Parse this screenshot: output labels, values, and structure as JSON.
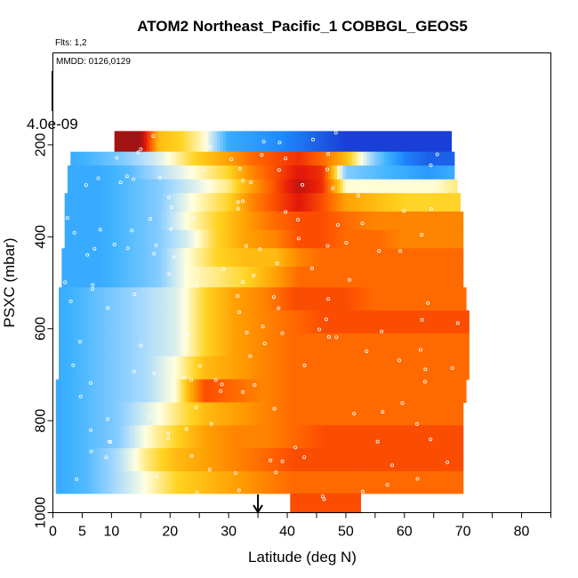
{
  "chart_data": {
    "type": "heatmap",
    "title": "ATOM2 Northeast_Pacific_1 COBBGL_GEOS5",
    "subtitle_flights": "Flts: 1,2",
    "subtitle_dates": "MMDD: 0126,0129",
    "xlabel": "Latitude (deg N)",
    "ylabel": "PSXC (mbar)",
    "xlim": [
      0,
      85
    ],
    "ylim": [
      1000,
      0
    ],
    "x_ticks": [
      "0",
      "5",
      "10",
      "20",
      "30",
      "40",
      "50",
      "60",
      "70",
      "80"
    ],
    "y_ticks": [
      "200",
      "400",
      "600",
      "800",
      "1000"
    ],
    "scale_label": "4.0e-09",
    "marker_latitude": 35,
    "colormap": [
      "#1a3fd6",
      "#1f8bff",
      "#3fb3ff",
      "#9fd6ff",
      "#ffffe0",
      "#ffd21f",
      "#ff9800",
      "#ff5a00",
      "#e61a0a",
      "#a01414"
    ],
    "fill_value_range": [
      0,
      1
    ],
    "layers": [
      {
        "p_top": 170,
        "p_bottom": 215,
        "lat_start": 10.5,
        "lat_end": 68,
        "lat": [
          11,
          15,
          18,
          22,
          26,
          30,
          35,
          40,
          45,
          50,
          55,
          60,
          64,
          68
        ],
        "value": [
          1.0,
          1.0,
          0.6,
          0.55,
          0.45,
          0.2,
          0.15,
          0.1,
          0.05,
          0.0,
          0.0,
          0.0,
          0.0,
          0.0
        ]
      },
      {
        "p_top": 215,
        "p_bottom": 245,
        "lat_start": 3,
        "lat_end": 68.5,
        "lat": [
          3,
          8,
          12,
          18,
          24,
          30,
          34,
          38,
          42,
          46,
          50,
          55,
          60,
          64,
          68
        ],
        "value": [
          0.2,
          0.25,
          0.3,
          0.4,
          0.55,
          0.65,
          0.75,
          0.8,
          0.85,
          0.75,
          0.6,
          0.3,
          0.1,
          0.05,
          0.05
        ]
      },
      {
        "p_top": 245,
        "p_bottom": 275,
        "lat_start": 2.5,
        "lat_end": 68.5,
        "lat": [
          3,
          8,
          13,
          18,
          24,
          30,
          34,
          38,
          42,
          46,
          50,
          55,
          60,
          64,
          68
        ],
        "value": [
          0.2,
          0.2,
          0.25,
          0.35,
          0.45,
          0.55,
          0.7,
          0.8,
          0.9,
          0.85,
          0.3,
          0.25,
          0.2,
          0.15,
          0.2
        ]
      },
      {
        "p_top": 275,
        "p_bottom": 305,
        "lat_start": 2.5,
        "lat_end": 69,
        "lat": [
          3,
          8,
          13,
          18,
          24,
          30,
          34,
          38,
          42,
          46,
          50,
          55,
          60,
          65,
          69
        ],
        "value": [
          0.2,
          0.2,
          0.25,
          0.3,
          0.4,
          0.5,
          0.65,
          0.8,
          0.95,
          0.85,
          0.45,
          0.45,
          0.45,
          0.45,
          0.5
        ]
      },
      {
        "p_top": 305,
        "p_bottom": 345,
        "lat_start": 2,
        "lat_end": 69.5,
        "lat": [
          2,
          8,
          13,
          18,
          24,
          30,
          34,
          38,
          42,
          46,
          50,
          55,
          60,
          65,
          69
        ],
        "value": [
          0.2,
          0.2,
          0.25,
          0.3,
          0.45,
          0.55,
          0.7,
          0.8,
          0.9,
          0.8,
          0.65,
          0.6,
          0.55,
          0.55,
          0.55
        ]
      },
      {
        "p_top": 345,
        "p_bottom": 385,
        "lat_start": 2,
        "lat_end": 70,
        "lat": [
          2,
          8,
          13,
          18,
          23,
          28,
          33,
          38,
          42,
          46,
          50,
          55,
          60,
          65,
          70
        ],
        "value": [
          0.2,
          0.2,
          0.25,
          0.3,
          0.45,
          0.55,
          0.65,
          0.75,
          0.8,
          0.8,
          0.75,
          0.7,
          0.7,
          0.7,
          0.7
        ]
      },
      {
        "p_top": 385,
        "p_bottom": 425,
        "lat_start": 2,
        "lat_end": 70,
        "lat": [
          2,
          8,
          13,
          18,
          23,
          28,
          33,
          38,
          42,
          46,
          50,
          55,
          60,
          65,
          70
        ],
        "value": [
          0.2,
          0.2,
          0.25,
          0.3,
          0.4,
          0.55,
          0.65,
          0.7,
          0.8,
          0.8,
          0.75,
          0.75,
          0.7,
          0.7,
          0.7
        ]
      },
      {
        "p_top": 425,
        "p_bottom": 465,
        "lat_start": 1.5,
        "lat_end": 70,
        "lat": [
          2,
          8,
          13,
          18,
          23,
          28,
          33,
          38,
          42,
          46,
          50,
          55,
          60,
          65,
          70
        ],
        "value": [
          0.2,
          0.2,
          0.25,
          0.3,
          0.45,
          0.55,
          0.6,
          0.6,
          0.7,
          0.75,
          0.75,
          0.75,
          0.75,
          0.75,
          0.75
        ]
      },
      {
        "p_top": 465,
        "p_bottom": 510,
        "lat_start": 1.5,
        "lat_end": 70,
        "lat": [
          2,
          8,
          13,
          18,
          23,
          28,
          33,
          38,
          42,
          46,
          50,
          55,
          60,
          65,
          70
        ],
        "value": [
          0.2,
          0.2,
          0.25,
          0.3,
          0.45,
          0.5,
          0.55,
          0.65,
          0.75,
          0.75,
          0.75,
          0.75,
          0.75,
          0.75,
          0.75
        ]
      },
      {
        "p_top": 510,
        "p_bottom": 560,
        "lat_start": 1,
        "lat_end": 70.5,
        "lat": [
          1,
          6,
          11,
          16,
          21,
          26,
          31,
          36,
          41,
          46,
          50,
          55,
          60,
          65,
          70
        ],
        "value": [
          0.2,
          0.25,
          0.3,
          0.35,
          0.4,
          0.55,
          0.65,
          0.7,
          0.8,
          0.8,
          0.8,
          0.75,
          0.75,
          0.75,
          0.75
        ]
      },
      {
        "p_top": 560,
        "p_bottom": 610,
        "lat_start": 1,
        "lat_end": 71,
        "lat": [
          1,
          6,
          11,
          16,
          21,
          26,
          31,
          36,
          41,
          46,
          50,
          55,
          60,
          65,
          71
        ],
        "value": [
          0.2,
          0.25,
          0.3,
          0.35,
          0.4,
          0.55,
          0.65,
          0.7,
          0.75,
          0.8,
          0.8,
          0.8,
          0.8,
          0.8,
          0.8
        ]
      },
      {
        "p_top": 610,
        "p_bottom": 660,
        "lat_start": 1,
        "lat_end": 71,
        "lat": [
          1,
          6,
          11,
          16,
          21,
          26,
          31,
          36,
          41,
          46,
          50,
          55,
          60,
          65,
          71
        ],
        "value": [
          0.2,
          0.25,
          0.3,
          0.35,
          0.4,
          0.55,
          0.65,
          0.7,
          0.75,
          0.75,
          0.75,
          0.75,
          0.75,
          0.75,
          0.75
        ]
      },
      {
        "p_top": 660,
        "p_bottom": 710,
        "lat_start": 1,
        "lat_end": 71,
        "lat": [
          1,
          6,
          11,
          16,
          21,
          26,
          31,
          36,
          41,
          46,
          50,
          55,
          60,
          65,
          71
        ],
        "value": [
          0.2,
          0.25,
          0.3,
          0.35,
          0.45,
          0.6,
          0.65,
          0.7,
          0.75,
          0.75,
          0.75,
          0.75,
          0.75,
          0.75,
          0.75
        ]
      },
      {
        "p_top": 710,
        "p_bottom": 760,
        "lat_start": 0.5,
        "lat_end": 70.5,
        "lat": [
          1,
          6,
          11,
          16,
          21,
          26,
          31,
          36,
          41,
          46,
          50,
          55,
          60,
          65,
          70
        ],
        "value": [
          0.2,
          0.25,
          0.3,
          0.35,
          0.45,
          0.8,
          0.75,
          0.7,
          0.75,
          0.75,
          0.75,
          0.75,
          0.75,
          0.75,
          0.75
        ]
      },
      {
        "p_top": 760,
        "p_bottom": 810,
        "lat_start": 0.5,
        "lat_end": 70,
        "lat": [
          1,
          6,
          11,
          16,
          21,
          26,
          31,
          36,
          41,
          46,
          50,
          55,
          60,
          65,
          70
        ],
        "value": [
          0.2,
          0.25,
          0.3,
          0.4,
          0.5,
          0.6,
          0.65,
          0.7,
          0.75,
          0.75,
          0.75,
          0.75,
          0.75,
          0.75,
          0.75
        ]
      },
      {
        "p_top": 810,
        "p_bottom": 860,
        "lat_start": 0.5,
        "lat_end": 70,
        "lat": [
          1,
          6,
          11,
          16,
          21,
          26,
          31,
          36,
          41,
          46,
          50,
          55,
          60,
          65,
          70
        ],
        "value": [
          0.2,
          0.25,
          0.3,
          0.45,
          0.55,
          0.65,
          0.7,
          0.7,
          0.75,
          0.8,
          0.8,
          0.8,
          0.8,
          0.8,
          0.8
        ]
      },
      {
        "p_top": 860,
        "p_bottom": 910,
        "lat_start": 0.5,
        "lat_end": 70,
        "lat": [
          1,
          6,
          11,
          16,
          21,
          26,
          31,
          36,
          41,
          46,
          50,
          55,
          60,
          65,
          70
        ],
        "value": [
          0.2,
          0.25,
          0.35,
          0.5,
          0.6,
          0.65,
          0.7,
          0.75,
          0.8,
          0.8,
          0.8,
          0.8,
          0.8,
          0.8,
          0.8
        ]
      },
      {
        "p_top": 910,
        "p_bottom": 958,
        "lat_start": 0.5,
        "lat_end": 70,
        "lat": [
          1,
          6,
          11,
          16,
          21,
          26,
          31,
          36,
          41,
          46,
          50,
          55,
          60,
          65,
          70
        ],
        "value": [
          0.2,
          0.25,
          0.35,
          0.45,
          0.55,
          0.6,
          0.65,
          0.7,
          0.75,
          0.75,
          0.75,
          0.75,
          0.75,
          0.75,
          0.75
        ]
      },
      {
        "p_top": 958,
        "p_bottom": 1000,
        "lat_start": 40.5,
        "lat_end": 52.5,
        "lat": [
          41,
          44,
          47,
          50,
          52
        ],
        "value": [
          0.8,
          0.8,
          0.8,
          0.8,
          0.8
        ]
      }
    ]
  }
}
